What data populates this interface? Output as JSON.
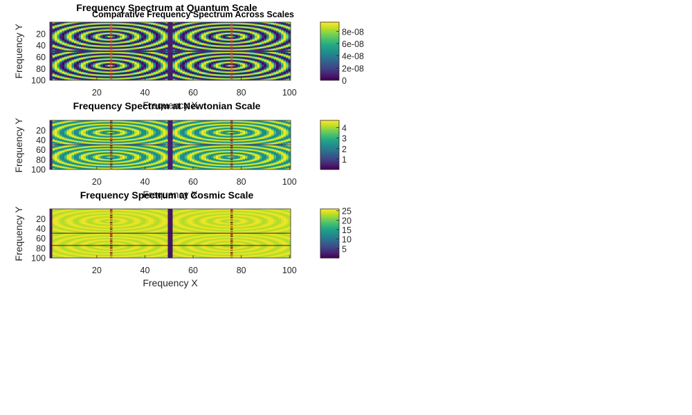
{
  "figure": {
    "suptitle": "Comparative Frequency Spectrum Across Scales"
  },
  "chart_data": [
    {
      "type": "heatmap",
      "title": "Frequency Spectrum at Quantum Scale",
      "xlabel": "Frequency X",
      "ylabel": "Frequency Y",
      "xlim": [
        1,
        100
      ],
      "ylim": [
        1,
        100
      ],
      "x_ticks": [
        "20",
        "40",
        "60",
        "80",
        "100"
      ],
      "y_ticks": [
        "20",
        "40",
        "60",
        "80",
        "100"
      ],
      "colorbar_range": [
        0,
        9.5e-08
      ],
      "colorbar_ticks": [
        "0",
        "2e-08",
        "4e-08",
        "6e-08",
        "8e-08"
      ],
      "colormap": "viridis",
      "pattern": "quantum"
    },
    {
      "type": "heatmap",
      "title": "Frequency Spectrum at Newtonian Scale",
      "xlabel": "Frequency X",
      "ylabel": "Frequency Y",
      "xlim": [
        1,
        100
      ],
      "ylim": [
        1,
        100
      ],
      "x_ticks": [
        "20",
        "40",
        "60",
        "80",
        "100"
      ],
      "y_ticks": [
        "20",
        "40",
        "60",
        "80",
        "100"
      ],
      "colorbar_range": [
        0,
        4.7
      ],
      "colorbar_ticks": [
        "1",
        "2",
        "3",
        "4"
      ],
      "colormap": "viridis",
      "pattern": "newtonian"
    },
    {
      "type": "heatmap",
      "title": "Frequency Spectrum at Cosmic Scale",
      "xlabel": "Frequency X",
      "ylabel": "Frequency Y",
      "xlim": [
        1,
        100
      ],
      "ylim": [
        1,
        100
      ],
      "x_ticks": [
        "20",
        "40",
        "60",
        "80",
        "100"
      ],
      "y_ticks": [
        "20",
        "40",
        "60",
        "80",
        "100"
      ],
      "colorbar_range": [
        0,
        26
      ],
      "colorbar_ticks": [
        "5",
        "10",
        "15",
        "20",
        "25"
      ],
      "colormap": "viridis",
      "pattern": "cosmic"
    }
  ]
}
